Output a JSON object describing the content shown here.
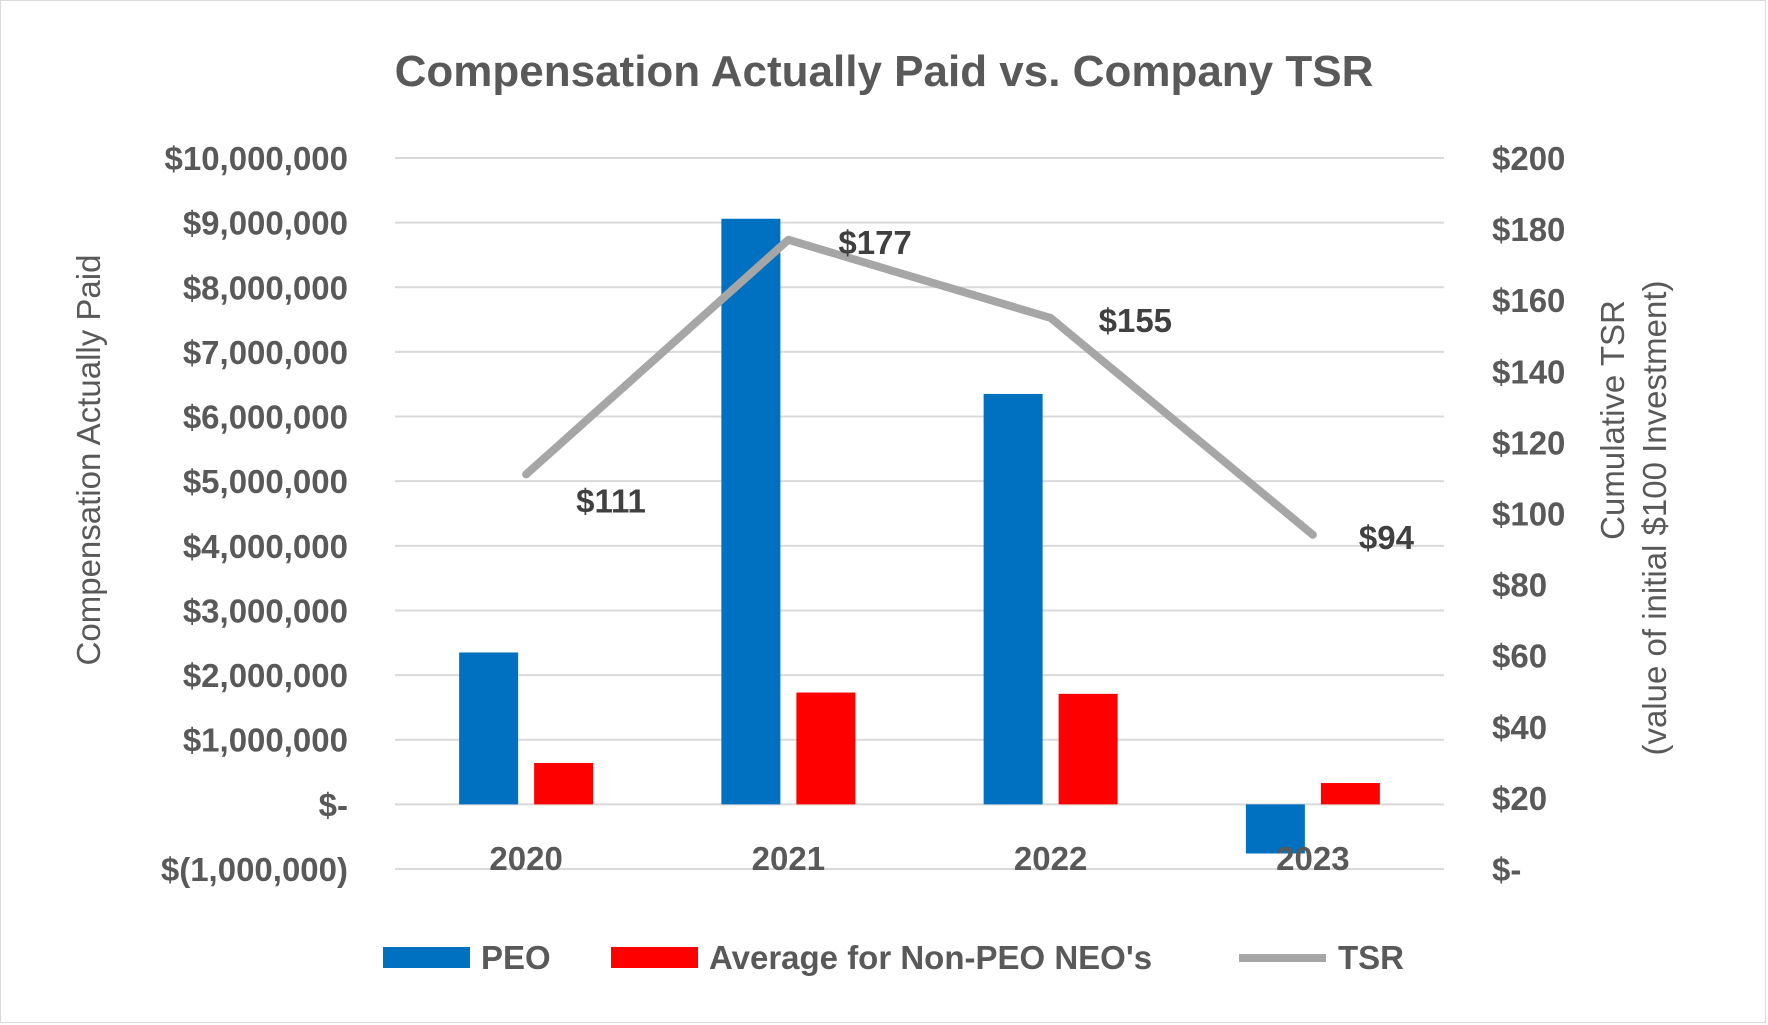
{
  "chart_data": {
    "type": "bar",
    "title": "Compensation Actually Paid vs. Company TSR",
    "categories": [
      "2020",
      "2021",
      "2022",
      "2023"
    ],
    "series": [
      {
        "name": "PEO",
        "type": "bar",
        "axis": "left",
        "color": "#0070c0",
        "values": [
          2350000,
          9060000,
          6350000,
          -760000
        ]
      },
      {
        "name": "Average for Non-PEO NEO's",
        "type": "bar",
        "axis": "left",
        "color": "#ff0000",
        "values": [
          640000,
          1730000,
          1710000,
          330000
        ]
      },
      {
        "name": "TSR",
        "type": "line",
        "axis": "right",
        "color": "#a6a6a6",
        "values": [
          111,
          177,
          155,
          94
        ],
        "data_labels": [
          "$111",
          "$177",
          "$155",
          "$94"
        ]
      }
    ],
    "ylabel": "Compensation Actually Paid",
    "ylabel_right": [
      "Cumulative TSR",
      "(value of initial $100 Investment)"
    ],
    "ylim": [
      -1000000,
      10000000
    ],
    "ylim_right": [
      0,
      200
    ],
    "yticks": [
      "$10,000,000",
      "$9,000,000",
      "$8,000,000",
      "$7,000,000",
      "$6,000,000",
      "$5,000,000",
      "$4,000,000",
      "$3,000,000",
      "$2,000,000",
      "$1,000,000",
      "$-",
      "$(1,000,000)"
    ],
    "yticks_right": [
      "$200",
      "$180",
      "$160",
      "$140",
      "$120",
      "$100",
      "$80",
      "$60",
      "$40",
      "$20",
      "$-"
    ],
    "grid": true,
    "legend_position": "bottom"
  }
}
